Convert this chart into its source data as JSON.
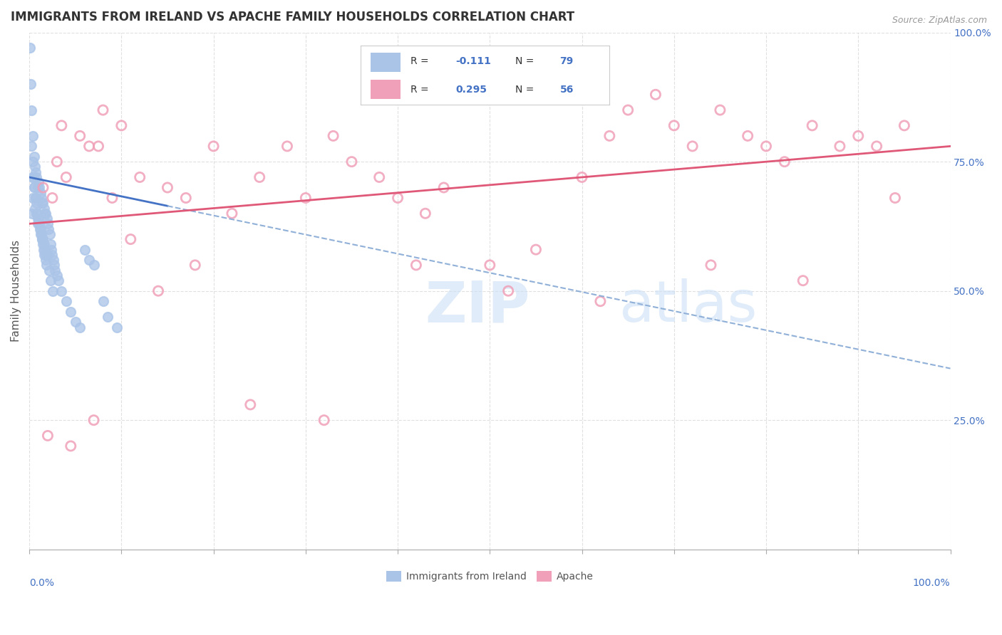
{
  "title": "IMMIGRANTS FROM IRELAND VS APACHE FAMILY HOUSEHOLDS CORRELATION CHART",
  "source": "Source: ZipAtlas.com",
  "ylabel": "Family Households",
  "legend_label1": "Immigrants from Ireland",
  "legend_label2": "Apache",
  "r1": -0.111,
  "n1": 79,
  "r2": 0.295,
  "n2": 56,
  "color_blue": "#aac4e8",
  "color_pink": "#f0a0b8",
  "color_blue_text": "#4472c4",
  "color_pink_text": "#4472c4",
  "blue_scatter_x": [
    0.1,
    0.15,
    0.2,
    0.25,
    0.3,
    0.3,
    0.4,
    0.4,
    0.5,
    0.5,
    0.6,
    0.6,
    0.7,
    0.7,
    0.8,
    0.8,
    0.9,
    0.9,
    1.0,
    1.0,
    1.1,
    1.1,
    1.2,
    1.2,
    1.3,
    1.3,
    1.4,
    1.4,
    1.5,
    1.5,
    1.6,
    1.6,
    1.7,
    1.7,
    1.8,
    1.8,
    1.9,
    2.0,
    2.0,
    2.1,
    2.2,
    2.3,
    2.4,
    2.5,
    2.6,
    2.7,
    2.8,
    3.0,
    3.2,
    3.5,
    4.0,
    4.5,
    5.0,
    5.5,
    6.0,
    6.5,
    7.0,
    8.0,
    8.5,
    9.5,
    0.35,
    0.45,
    0.55,
    0.65,
    0.75,
    0.85,
    0.95,
    1.05,
    1.15,
    1.25,
    1.35,
    1.45,
    1.55,
    1.65,
    1.75,
    1.85,
    2.15,
    2.35,
    2.55
  ],
  "blue_scatter_y": [
    97,
    90,
    85,
    78,
    72,
    65,
    80,
    68,
    76,
    70,
    74,
    66,
    73,
    68,
    72,
    65,
    70,
    63,
    71,
    64,
    70,
    63,
    69,
    62,
    68,
    61,
    67,
    60,
    67,
    60,
    66,
    59,
    65,
    58,
    65,
    57,
    64,
    63,
    57,
    62,
    61,
    59,
    58,
    57,
    56,
    55,
    54,
    53,
    52,
    50,
    48,
    46,
    44,
    43,
    58,
    56,
    55,
    48,
    45,
    43,
    75,
    72,
    70,
    68,
    67,
    65,
    64,
    63,
    62,
    61,
    60,
    59,
    58,
    57,
    56,
    55,
    54,
    52,
    50
  ],
  "pink_scatter_x": [
    1.5,
    2.5,
    3.0,
    4.0,
    5.5,
    6.5,
    8.0,
    10.0,
    12.0,
    15.0,
    17.0,
    20.0,
    22.0,
    25.0,
    28.0,
    30.0,
    33.0,
    35.0,
    38.0,
    40.0,
    43.0,
    45.0,
    50.0,
    55.0,
    60.0,
    63.0,
    65.0,
    68.0,
    70.0,
    72.0,
    75.0,
    78.0,
    80.0,
    82.0,
    85.0,
    88.0,
    90.0,
    92.0,
    95.0,
    2.0,
    4.5,
    7.0,
    9.0,
    11.0,
    14.0,
    18.0,
    24.0,
    32.0,
    42.0,
    52.0,
    62.0,
    74.0,
    84.0,
    94.0,
    3.5,
    7.5
  ],
  "pink_scatter_y": [
    70,
    68,
    75,
    72,
    80,
    78,
    85,
    82,
    72,
    70,
    68,
    78,
    65,
    72,
    78,
    68,
    80,
    75,
    72,
    68,
    65,
    70,
    55,
    58,
    72,
    80,
    85,
    88,
    82,
    78,
    85,
    80,
    78,
    75,
    82,
    78,
    80,
    78,
    82,
    22,
    20,
    25,
    68,
    60,
    50,
    55,
    28,
    25,
    55,
    50,
    48,
    55,
    52,
    68,
    82,
    78
  ],
  "xlim": [
    0,
    100
  ],
  "ylim": [
    0,
    100
  ],
  "ytick_labels": [
    "25.0%",
    "50.0%",
    "75.0%",
    "100.0%"
  ],
  "ytick_values": [
    25,
    50,
    75,
    100
  ],
  "blue_line_x": [
    0,
    100
  ],
  "blue_line_y_start": 72,
  "blue_line_y_end": 35,
  "pink_line_y_start": 63,
  "pink_line_y_end": 78,
  "grid_color": "#cccccc",
  "background_color": "#ffffff"
}
